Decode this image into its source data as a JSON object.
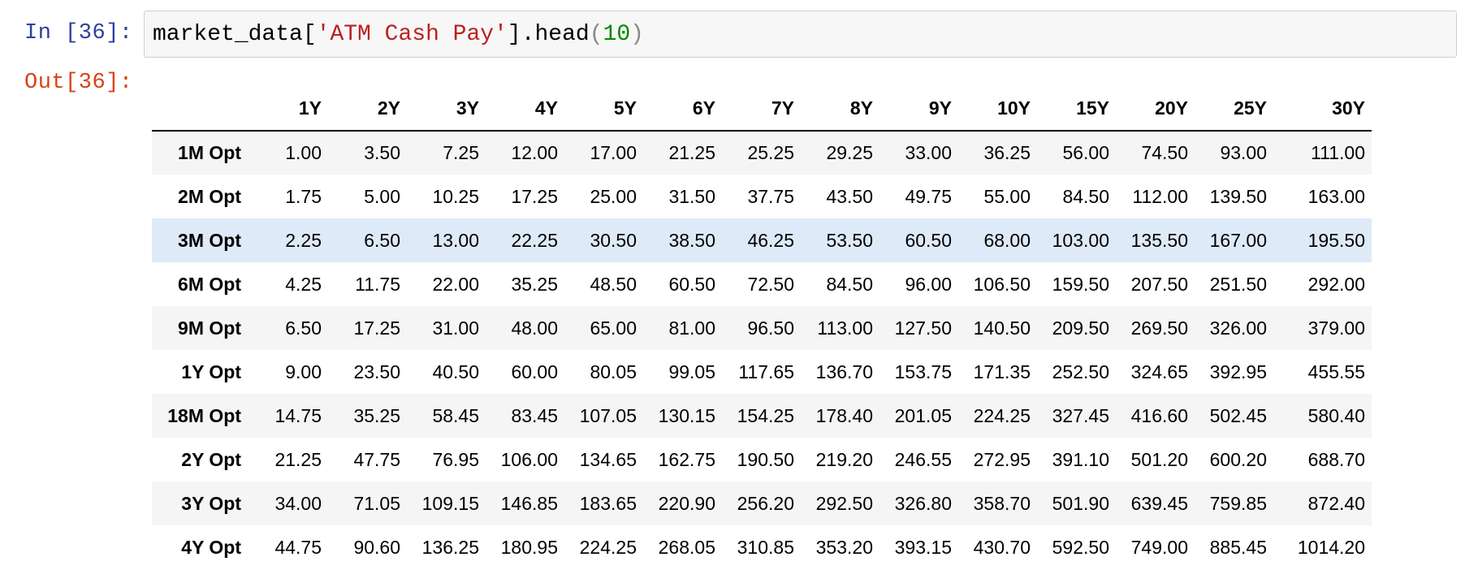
{
  "cell": {
    "in_prompt": "In [36]:",
    "out_prompt": "Out[36]:",
    "code": {
      "prefix": "market_data[",
      "string": "'ATM Cash Pay'",
      "method": "].head",
      "open_paren": "(",
      "arg": "10",
      "close_paren": ")"
    }
  },
  "table": {
    "columns": [
      "1Y",
      "2Y",
      "3Y",
      "4Y",
      "5Y",
      "6Y",
      "7Y",
      "8Y",
      "9Y",
      "10Y",
      "15Y",
      "20Y",
      "25Y",
      "30Y"
    ],
    "rows": [
      {
        "label": "1M Opt",
        "values": [
          "1.00",
          "3.50",
          "7.25",
          "12.00",
          "17.00",
          "21.25",
          "25.25",
          "29.25",
          "33.00",
          "36.25",
          "56.00",
          "74.50",
          "93.00",
          "111.00"
        ]
      },
      {
        "label": "2M Opt",
        "values": [
          "1.75",
          "5.00",
          "10.25",
          "17.25",
          "25.00",
          "31.50",
          "37.75",
          "43.50",
          "49.75",
          "55.00",
          "84.50",
          "112.00",
          "139.50",
          "163.00"
        ]
      },
      {
        "label": "3M Opt",
        "values": [
          "2.25",
          "6.50",
          "13.00",
          "22.25",
          "30.50",
          "38.50",
          "46.25",
          "53.50",
          "60.50",
          "68.00",
          "103.00",
          "135.50",
          "167.00",
          "195.50"
        ]
      },
      {
        "label": "6M Opt",
        "values": [
          "4.25",
          "11.75",
          "22.00",
          "35.25",
          "48.50",
          "60.50",
          "72.50",
          "84.50",
          "96.00",
          "106.50",
          "159.50",
          "207.50",
          "251.50",
          "292.00"
        ]
      },
      {
        "label": "9M Opt",
        "values": [
          "6.50",
          "17.25",
          "31.00",
          "48.00",
          "65.00",
          "81.00",
          "96.50",
          "113.00",
          "127.50",
          "140.50",
          "209.50",
          "269.50",
          "326.00",
          "379.00"
        ]
      },
      {
        "label": "1Y Opt",
        "values": [
          "9.00",
          "23.50",
          "40.50",
          "60.00",
          "80.05",
          "99.05",
          "117.65",
          "136.70",
          "153.75",
          "171.35",
          "252.50",
          "324.65",
          "392.95",
          "455.55"
        ]
      },
      {
        "label": "18M Opt",
        "values": [
          "14.75",
          "35.25",
          "58.45",
          "83.45",
          "107.05",
          "130.15",
          "154.25",
          "178.40",
          "201.05",
          "224.25",
          "327.45",
          "416.60",
          "502.45",
          "580.40"
        ]
      },
      {
        "label": "2Y Opt",
        "values": [
          "21.25",
          "47.75",
          "76.95",
          "106.00",
          "134.65",
          "162.75",
          "190.50",
          "219.20",
          "246.55",
          "272.95",
          "391.10",
          "501.20",
          "600.20",
          "688.70"
        ]
      },
      {
        "label": "3Y Opt",
        "values": [
          "34.00",
          "71.05",
          "109.15",
          "146.85",
          "183.65",
          "220.90",
          "256.20",
          "292.50",
          "326.80",
          "358.70",
          "501.90",
          "639.45",
          "759.85",
          "872.40"
        ]
      },
      {
        "label": "4Y Opt",
        "values": [
          "44.75",
          "90.60",
          "136.25",
          "180.95",
          "224.25",
          "268.05",
          "310.85",
          "353.20",
          "393.15",
          "430.70",
          "592.50",
          "749.00",
          "885.45",
          "1014.20"
        ]
      }
    ],
    "hovered_row": 2
  }
}
